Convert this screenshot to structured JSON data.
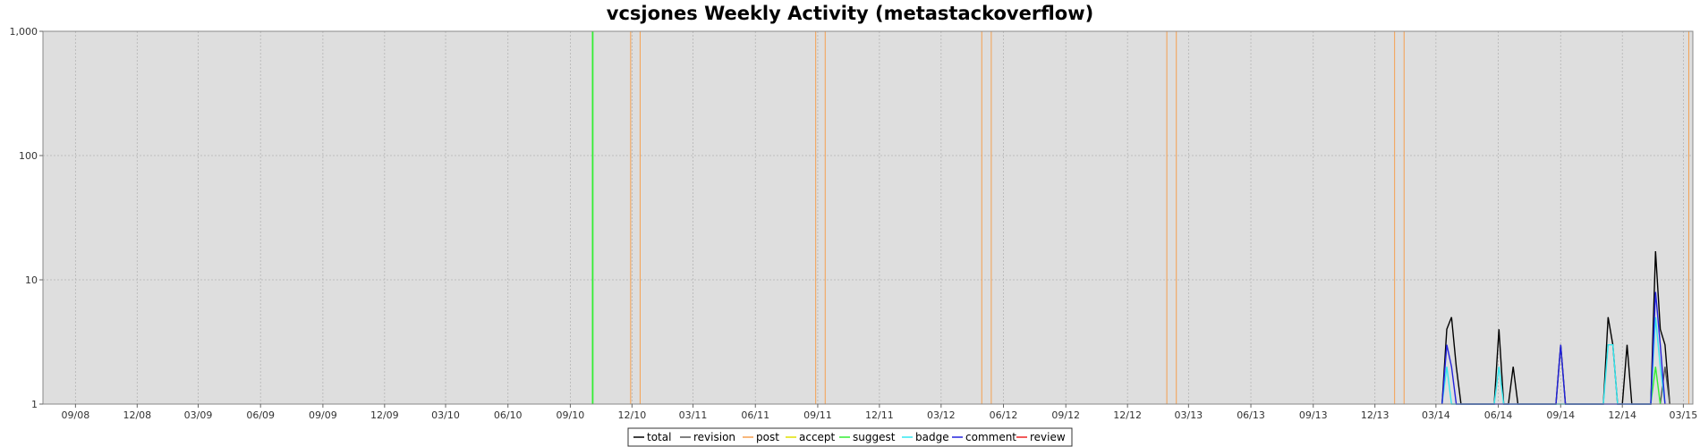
{
  "chart_data": {
    "type": "line",
    "title": "vcsjones Weekly Activity (metastackoverflow)",
    "xlabel": "",
    "ylabel": "",
    "y_scale": "log",
    "ylim": [
      1,
      1000
    ],
    "y_ticks": [
      1,
      10,
      100,
      1000
    ],
    "y_tick_labels": [
      "1",
      "10",
      "100",
      "1,000"
    ],
    "x_range": [
      "2008-07-15",
      "2015-03-15"
    ],
    "x_ticks": [
      "2008-09-01",
      "2008-12-01",
      "2009-03-01",
      "2009-06-01",
      "2009-09-01",
      "2009-12-01",
      "2010-03-01",
      "2010-06-01",
      "2010-09-01",
      "2010-12-01",
      "2011-03-01",
      "2011-06-01",
      "2011-09-01",
      "2011-12-01",
      "2012-03-01",
      "2012-06-01",
      "2012-09-01",
      "2012-12-01",
      "2013-03-01",
      "2013-06-01",
      "2013-09-01",
      "2013-12-01",
      "2014-03-01",
      "2014-06-01",
      "2014-09-01",
      "2014-12-01",
      "2015-03-01"
    ],
    "x_tick_labels": [
      "09/08",
      "12/08",
      "03/09",
      "06/09",
      "09/09",
      "12/09",
      "03/10",
      "06/10",
      "09/10",
      "12/10",
      "03/11",
      "06/11",
      "09/11",
      "12/11",
      "03/12",
      "06/12",
      "09/12",
      "12/12",
      "03/13",
      "06/13",
      "09/13",
      "12/13",
      "03/14",
      "06/14",
      "09/14",
      "12/14",
      "03/15"
    ],
    "grid": true,
    "legend_position": "bottom",
    "background_color": "#dedede",
    "vertical_markers": [
      {
        "series": "suggest",
        "date": "2010-10-04",
        "color": "#33ee33"
      },
      {
        "series": "post",
        "date": "2010-11-29",
        "color": "#f5a050"
      },
      {
        "series": "post",
        "date": "2010-12-13",
        "color": "#f5a050"
      },
      {
        "series": "post",
        "date": "2011-08-29",
        "color": "#f5a050"
      },
      {
        "series": "post",
        "date": "2011-09-12",
        "color": "#f5a050"
      },
      {
        "series": "post",
        "date": "2012-04-30",
        "color": "#f5a050"
      },
      {
        "series": "post",
        "date": "2012-05-14",
        "color": "#f5a050"
      },
      {
        "series": "post",
        "date": "2013-01-28",
        "color": "#f5a050"
      },
      {
        "series": "post",
        "date": "2013-02-11",
        "color": "#f5a050"
      },
      {
        "series": "post",
        "date": "2013-12-30",
        "color": "#f5a050"
      },
      {
        "series": "post",
        "date": "2014-01-13",
        "color": "#f5a050"
      },
      {
        "series": "post",
        "date": "2015-03-09",
        "color": "#f5a050"
      }
    ],
    "series": [
      {
        "name": "total",
        "color": "#000000",
        "points": [
          [
            "2014-03-10",
            1
          ],
          [
            "2014-03-17",
            4
          ],
          [
            "2014-03-24",
            5
          ],
          [
            "2014-03-31",
            2
          ],
          [
            "2014-04-07",
            1
          ],
          [
            "2014-05-26",
            1
          ],
          [
            "2014-06-02",
            4
          ],
          [
            "2014-06-09",
            1
          ],
          [
            "2014-06-16",
            1
          ],
          [
            "2014-06-23",
            2
          ],
          [
            "2014-06-30",
            1
          ],
          [
            "2014-08-25",
            1
          ],
          [
            "2014-09-01",
            3
          ],
          [
            "2014-09-08",
            1
          ],
          [
            "2014-11-03",
            1
          ],
          [
            "2014-11-10",
            5
          ],
          [
            "2014-11-17",
            3
          ],
          [
            "2014-11-24",
            1
          ],
          [
            "2014-12-01",
            1
          ],
          [
            "2014-12-08",
            3
          ],
          [
            "2014-12-15",
            1
          ],
          [
            "2015-01-12",
            1
          ],
          [
            "2015-01-19",
            17
          ],
          [
            "2015-01-26",
            4
          ],
          [
            "2015-02-02",
            3
          ],
          [
            "2015-02-09",
            1
          ]
        ]
      },
      {
        "name": "revision",
        "color": "#555555",
        "points": [
          [
            "2015-01-26",
            1
          ],
          [
            "2015-02-02",
            2
          ],
          [
            "2015-02-09",
            1
          ]
        ]
      },
      {
        "name": "post",
        "color": "#f5a050",
        "points": []
      },
      {
        "name": "accept",
        "color": "#e0e000",
        "points": []
      },
      {
        "name": "suggest",
        "color": "#33ee33",
        "points": [
          [
            "2015-01-12",
            1
          ],
          [
            "2015-01-19",
            2
          ],
          [
            "2015-01-26",
            1
          ]
        ]
      },
      {
        "name": "badge",
        "color": "#33e8f0",
        "points": [
          [
            "2014-03-10",
            1
          ],
          [
            "2014-03-17",
            2
          ],
          [
            "2014-03-24",
            1
          ],
          [
            "2014-05-26",
            1
          ],
          [
            "2014-06-02",
            2
          ],
          [
            "2014-06-09",
            1
          ],
          [
            "2014-11-03",
            1
          ],
          [
            "2014-11-10",
            3
          ],
          [
            "2014-11-17",
            3
          ],
          [
            "2014-11-24",
            1
          ],
          [
            "2015-01-12",
            1
          ],
          [
            "2015-01-19",
            5
          ],
          [
            "2015-01-26",
            2
          ],
          [
            "2015-02-02",
            1
          ]
        ]
      },
      {
        "name": "comment",
        "color": "#2222dd",
        "points": [
          [
            "2014-03-10",
            1
          ],
          [
            "2014-03-17",
            3
          ],
          [
            "2014-03-24",
            2
          ],
          [
            "2014-03-31",
            1
          ],
          [
            "2014-08-25",
            1
          ],
          [
            "2014-09-01",
            3
          ],
          [
            "2014-09-08",
            1
          ],
          [
            "2015-01-12",
            1
          ],
          [
            "2015-01-19",
            8
          ],
          [
            "2015-01-26",
            3
          ],
          [
            "2015-02-02",
            1
          ]
        ]
      },
      {
        "name": "review",
        "color": "#ee2222",
        "points": []
      }
    ]
  }
}
